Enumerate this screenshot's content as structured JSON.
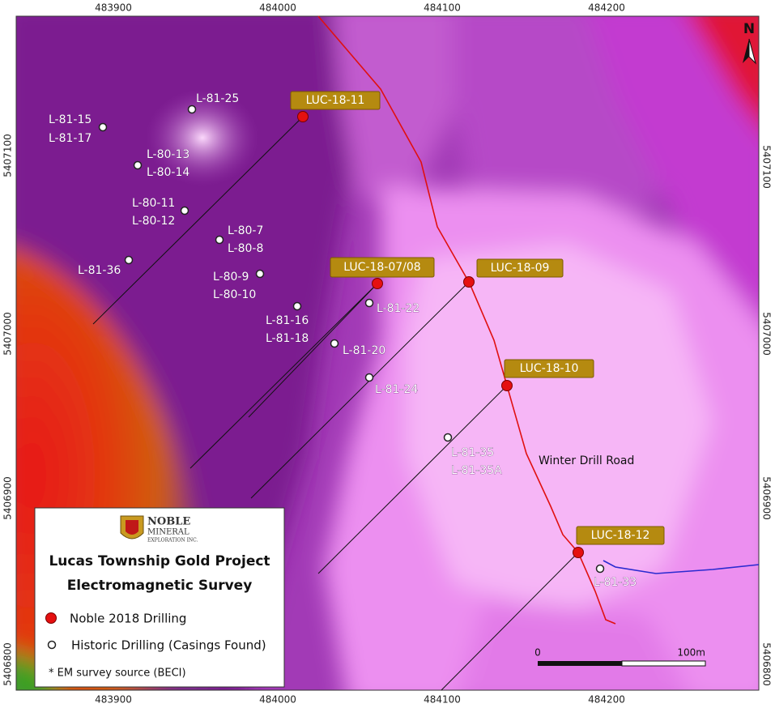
{
  "grid": {
    "top": [
      483900,
      484000,
      484100,
      484200
    ],
    "bottom": [
      483900,
      484000,
      484100,
      484200
    ],
    "left": [
      5407100,
      5407000,
      5406900,
      5406800
    ],
    "right": [
      5407100,
      5407000,
      5406900,
      5406800
    ]
  },
  "north": "N",
  "drilling_2018": [
    "LUC-18-11",
    "LUC-18-07/08",
    "LUC-18-09",
    "LUC-18-10",
    "LUC-18-12"
  ],
  "historic": [
    [
      "L-81-25"
    ],
    [
      "L-81-15",
      "L-81-17"
    ],
    [
      "L-80-13",
      "L-80-14"
    ],
    [
      "L-80-11",
      "L-80-12"
    ],
    [
      "L-80-7",
      "L-80-8"
    ],
    [
      "L-81-36"
    ],
    [
      "L-80-9",
      "L-80-10"
    ],
    [
      "L-81-16",
      "L-81-18"
    ],
    [
      "L-81-22"
    ],
    [
      "L-81-20"
    ],
    [
      "L-81-24"
    ],
    [
      "L-81-35",
      "L-81-35A"
    ],
    [
      "L-81-33"
    ]
  ],
  "road_label": "Winter Drill Road",
  "scale": {
    "start": "0",
    "end": "100m"
  },
  "legend": {
    "logo": [
      "NOBLE",
      "MINERAL",
      "EXPLORATION INC."
    ],
    "title": [
      "Lucas Township Gold Project",
      "Electromagnetic Survey"
    ],
    "items": [
      "Noble 2018 Drilling",
      "Historic Drilling (Casings Found)"
    ],
    "note": "* EM survey source (BECI)"
  }
}
